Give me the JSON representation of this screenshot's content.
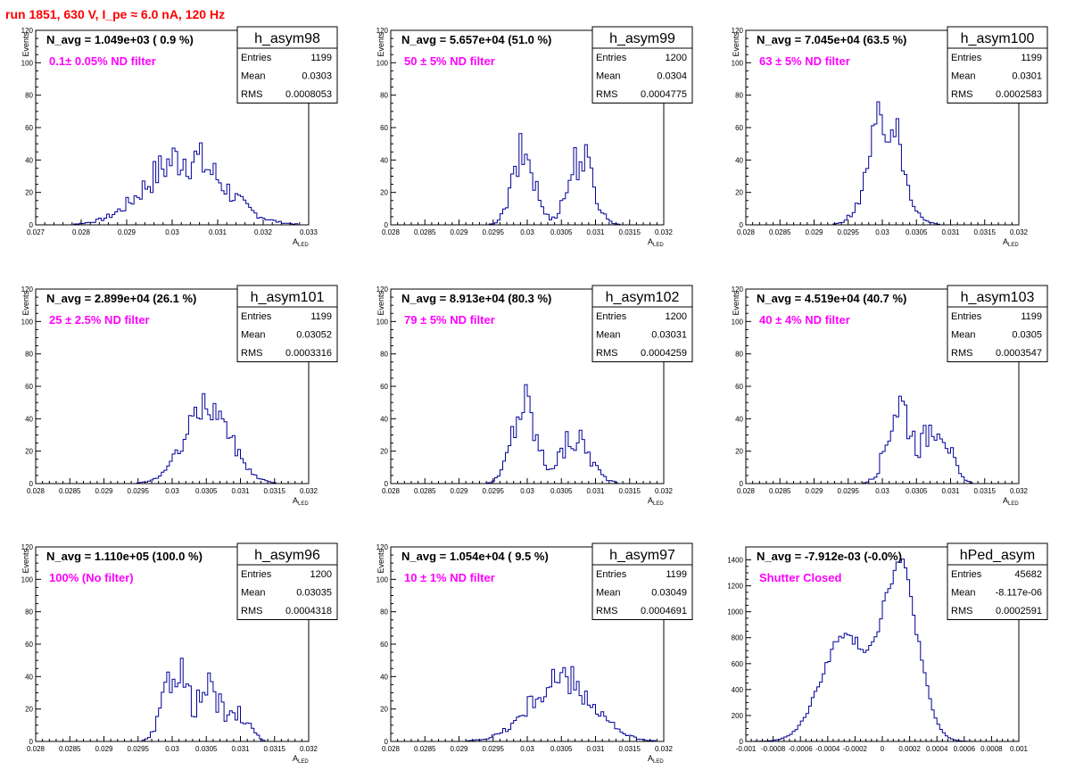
{
  "title": "run 1851,   630 V, I_pe ≈ 6.0 nA, 120 Hz",
  "stat_labels": {
    "entries": "Entries",
    "mean": "Mean",
    "rms": "RMS"
  },
  "chart_data": [
    {
      "type": "bar",
      "name": "h_asym98",
      "navg_text": "N_avg = 1.049e+03 ( 0.9 %)",
      "filter_text": "0.1± 0.05% ND filter",
      "entries": "1199",
      "mean": "0.0303",
      "rms": "0.0008053",
      "xlabel": "A_LED",
      "ylabel": "Events",
      "xlim": [
        0.027,
        0.033
      ],
      "ylim": [
        0,
        120
      ],
      "xticks": [
        0.027,
        0.028,
        0.029,
        0.03,
        0.031,
        0.032,
        0.033
      ],
      "xticklabels": [
        "0.027",
        "0.028",
        "0.029",
        "0.03",
        "0.031",
        "0.032",
        "0.033"
      ],
      "yticks": [
        0,
        20,
        40,
        60,
        80,
        100,
        120
      ],
      "shape": {
        "model": "gauss",
        "comps": [
          [
            42,
            0.03028,
            0.00082
          ]
        ],
        "noise": 0.35
      }
    },
    {
      "type": "bar",
      "name": "h_asym99",
      "navg_text": "N_avg = 5.657e+04 (51.0 %)",
      "filter_text": "50 ± 5% ND filter",
      "entries": "1200",
      "mean": "0.0304",
      "rms": "0.0004775",
      "xlabel": "A_LED",
      "ylabel": "Events",
      "xlim": [
        0.028,
        0.032
      ],
      "ylim": [
        0,
        120
      ],
      "xticks": [
        0.028,
        0.0285,
        0.029,
        0.0295,
        0.03,
        0.0305,
        0.031,
        0.0315,
        0.032
      ],
      "xticklabels": [
        "0.028",
        "0.0285",
        "0.029",
        "0.0295",
        "0.03",
        "0.0305",
        "0.031",
        "0.0315",
        "0.032"
      ],
      "yticks": [
        0,
        20,
        40,
        60,
        80,
        100,
        120
      ],
      "shape": {
        "model": "gauss",
        "comps": [
          [
            44,
            0.02995,
            0.00016
          ],
          [
            42,
            0.03078,
            0.00018
          ]
        ],
        "noise": 0.35
      }
    },
    {
      "type": "bar",
      "name": "h_asym100",
      "navg_text": "N_avg = 7.045e+04 (63.5 %)",
      "filter_text": "63 ± 5% ND filter",
      "entries": "1199",
      "mean": "0.0301",
      "rms": "0.0002583",
      "xlabel": "A_LED",
      "ylabel": "Events",
      "xlim": [
        0.028,
        0.032
      ],
      "ylim": [
        0,
        120
      ],
      "xticks": [
        0.028,
        0.0285,
        0.029,
        0.0295,
        0.03,
        0.0305,
        0.031,
        0.0315,
        0.032
      ],
      "xticklabels": [
        "0.028",
        "0.0285",
        "0.029",
        "0.0295",
        "0.03",
        "0.0305",
        "0.031",
        "0.0315",
        "0.032"
      ],
      "yticks": [
        0,
        20,
        40,
        60,
        80,
        100,
        120
      ],
      "shape": {
        "model": "gauss",
        "comps": [
          [
            66,
            0.03005,
            0.00024
          ]
        ],
        "noise": 0.3
      }
    },
    {
      "type": "bar",
      "name": "h_asym101",
      "navg_text": "N_avg = 2.899e+04 (26.1 %)",
      "filter_text": "25 ± 2.5% ND filter",
      "entries": "1199",
      "mean": "0.03052",
      "rms": "0.0003316",
      "xlabel": "A_LED",
      "ylabel": "Events",
      "xlim": [
        0.028,
        0.032
      ],
      "ylim": [
        0,
        120
      ],
      "xticks": [
        0.028,
        0.0285,
        0.029,
        0.0295,
        0.03,
        0.0305,
        0.031,
        0.0315,
        0.032
      ],
      "xticklabels": [
        "0.028",
        "0.0285",
        "0.029",
        "0.0295",
        "0.03",
        "0.0305",
        "0.031",
        "0.0315",
        "0.032"
      ],
      "yticks": [
        0,
        20,
        40,
        60,
        80,
        100,
        120
      ],
      "shape": {
        "model": "gauss",
        "comps": [
          [
            48,
            0.03052,
            0.00033
          ]
        ],
        "noise": 0.2
      }
    },
    {
      "type": "bar",
      "name": "h_asym102",
      "navg_text": "N_avg = 8.913e+04 (80.3 %)",
      "filter_text": "79 ± 5% ND filter",
      "entries": "1200",
      "mean": "0.03031",
      "rms": "0.0004259",
      "xlabel": "A_LED",
      "ylabel": "Events",
      "xlim": [
        0.028,
        0.032
      ],
      "ylim": [
        0,
        120
      ],
      "xticks": [
        0.028,
        0.0285,
        0.029,
        0.0295,
        0.03,
        0.0305,
        0.031,
        0.0315,
        0.032
      ],
      "xticklabels": [
        "0.028",
        "0.0285",
        "0.029",
        "0.0295",
        "0.03",
        "0.0305",
        "0.031",
        "0.0315",
        "0.032"
      ],
      "yticks": [
        0,
        20,
        40,
        60,
        80,
        100,
        120
      ],
      "shape": {
        "model": "gauss",
        "comps": [
          [
            50,
            0.02995,
            0.00017
          ],
          [
            28,
            0.0307,
            0.00022
          ]
        ],
        "noise": 0.35
      }
    },
    {
      "type": "bar",
      "name": "h_asym103",
      "navg_text": "N_avg = 4.519e+04 (40.7 %)",
      "filter_text": "40 ± 4% ND filter",
      "entries": "1199",
      "mean": "0.0305",
      "rms": "0.0003547",
      "xlabel": "A_LED",
      "ylabel": "Events",
      "xlim": [
        0.028,
        0.032
      ],
      "ylim": [
        0,
        120
      ],
      "xticks": [
        0.028,
        0.0285,
        0.029,
        0.0295,
        0.03,
        0.0305,
        0.031,
        0.0315,
        0.032
      ],
      "xticklabels": [
        "0.028",
        "0.0285",
        "0.029",
        "0.0295",
        "0.03",
        "0.0305",
        "0.031",
        "0.0315",
        "0.032"
      ],
      "yticks": [
        0,
        20,
        40,
        60,
        80,
        100,
        120
      ],
      "shape": {
        "model": "gauss",
        "comps": [
          [
            50,
            0.03025,
            0.00017
          ],
          [
            40,
            0.0308,
            0.00017
          ]
        ],
        "noise": 0.35
      }
    },
    {
      "type": "bar",
      "name": "h_asym96",
      "navg_text": "N_avg = 1.110e+05 (100.0 %)",
      "filter_text": "100% (No filter)",
      "entries": "1200",
      "mean": "0.03035",
      "rms": "0.0004318",
      "xlabel": "A_LED",
      "ylabel": "Events",
      "xlim": [
        0.028,
        0.032
      ],
      "ylim": [
        0,
        120
      ],
      "xticks": [
        0.028,
        0.0285,
        0.029,
        0.0295,
        0.03,
        0.0305,
        0.031,
        0.0315,
        0.032
      ],
      "xticklabels": [
        "0.028",
        "0.0285",
        "0.029",
        "0.0295",
        "0.03",
        "0.0305",
        "0.031",
        "0.0315",
        "0.032"
      ],
      "yticks": [
        0,
        20,
        40,
        60,
        80,
        100,
        120
      ],
      "shape": {
        "model": "gauss",
        "comps": [
          [
            48,
            0.03005,
            0.00016
          ],
          [
            32,
            0.03055,
            0.00016
          ],
          [
            16,
            0.031,
            0.00014
          ]
        ],
        "noise": 0.35
      }
    },
    {
      "type": "bar",
      "name": "h_asym97",
      "navg_text": "N_avg = 1.054e+04 ( 9.5 %)",
      "filter_text": "10 ± 1% ND filter",
      "entries": "1199",
      "mean": "0.03049",
      "rms": "0.0004691",
      "xlabel": "A_LED",
      "ylabel": "Events",
      "xlim": [
        0.028,
        0.032
      ],
      "ylim": [
        0,
        120
      ],
      "xticks": [
        0.028,
        0.0285,
        0.029,
        0.0295,
        0.03,
        0.0305,
        0.031,
        0.0315,
        0.032
      ],
      "xticklabels": [
        "0.028",
        "0.0285",
        "0.029",
        "0.0295",
        "0.03",
        "0.0305",
        "0.031",
        "0.0315",
        "0.032"
      ],
      "yticks": [
        0,
        20,
        40,
        60,
        80,
        100,
        120
      ],
      "shape": {
        "model": "gauss",
        "comps": [
          [
            38,
            0.0305,
            0.00045
          ]
        ],
        "noise": 0.3
      }
    },
    {
      "type": "bar",
      "name": "hPed_asym",
      "navg_text": "N_avg = -7.912e-03 (-0.0%)",
      "filter_text": "Shutter Closed",
      "entries": "45682",
      "mean": "-8.117e-06",
      "rms": "0.0002591",
      "xlabel": "",
      "ylabel": "",
      "xlim": [
        -0.001,
        0.001
      ],
      "ylim": [
        0,
        1500
      ],
      "xticks": [
        -0.001,
        -0.0008,
        -0.0006,
        -0.0004,
        -0.0002,
        0,
        0.0002,
        0.0004,
        0.0006,
        0.0008,
        0.001
      ],
      "xticklabels": [
        "-0.001",
        "-0.0008",
        "-0.0006",
        "-0.0004",
        "-0.0002",
        "0",
        "0.0002",
        "0.0004",
        "0.0006",
        "0.0008",
        "0.001"
      ],
      "yticks": [
        0,
        200,
        400,
        600,
        800,
        1000,
        1200,
        1400
      ],
      "shape": {
        "model": "gauss",
        "comps": [
          [
            800,
            -0.00028,
            0.00017
          ],
          [
            1330,
            0.00013,
            0.00013
          ]
        ],
        "noise": 0.06
      }
    }
  ]
}
